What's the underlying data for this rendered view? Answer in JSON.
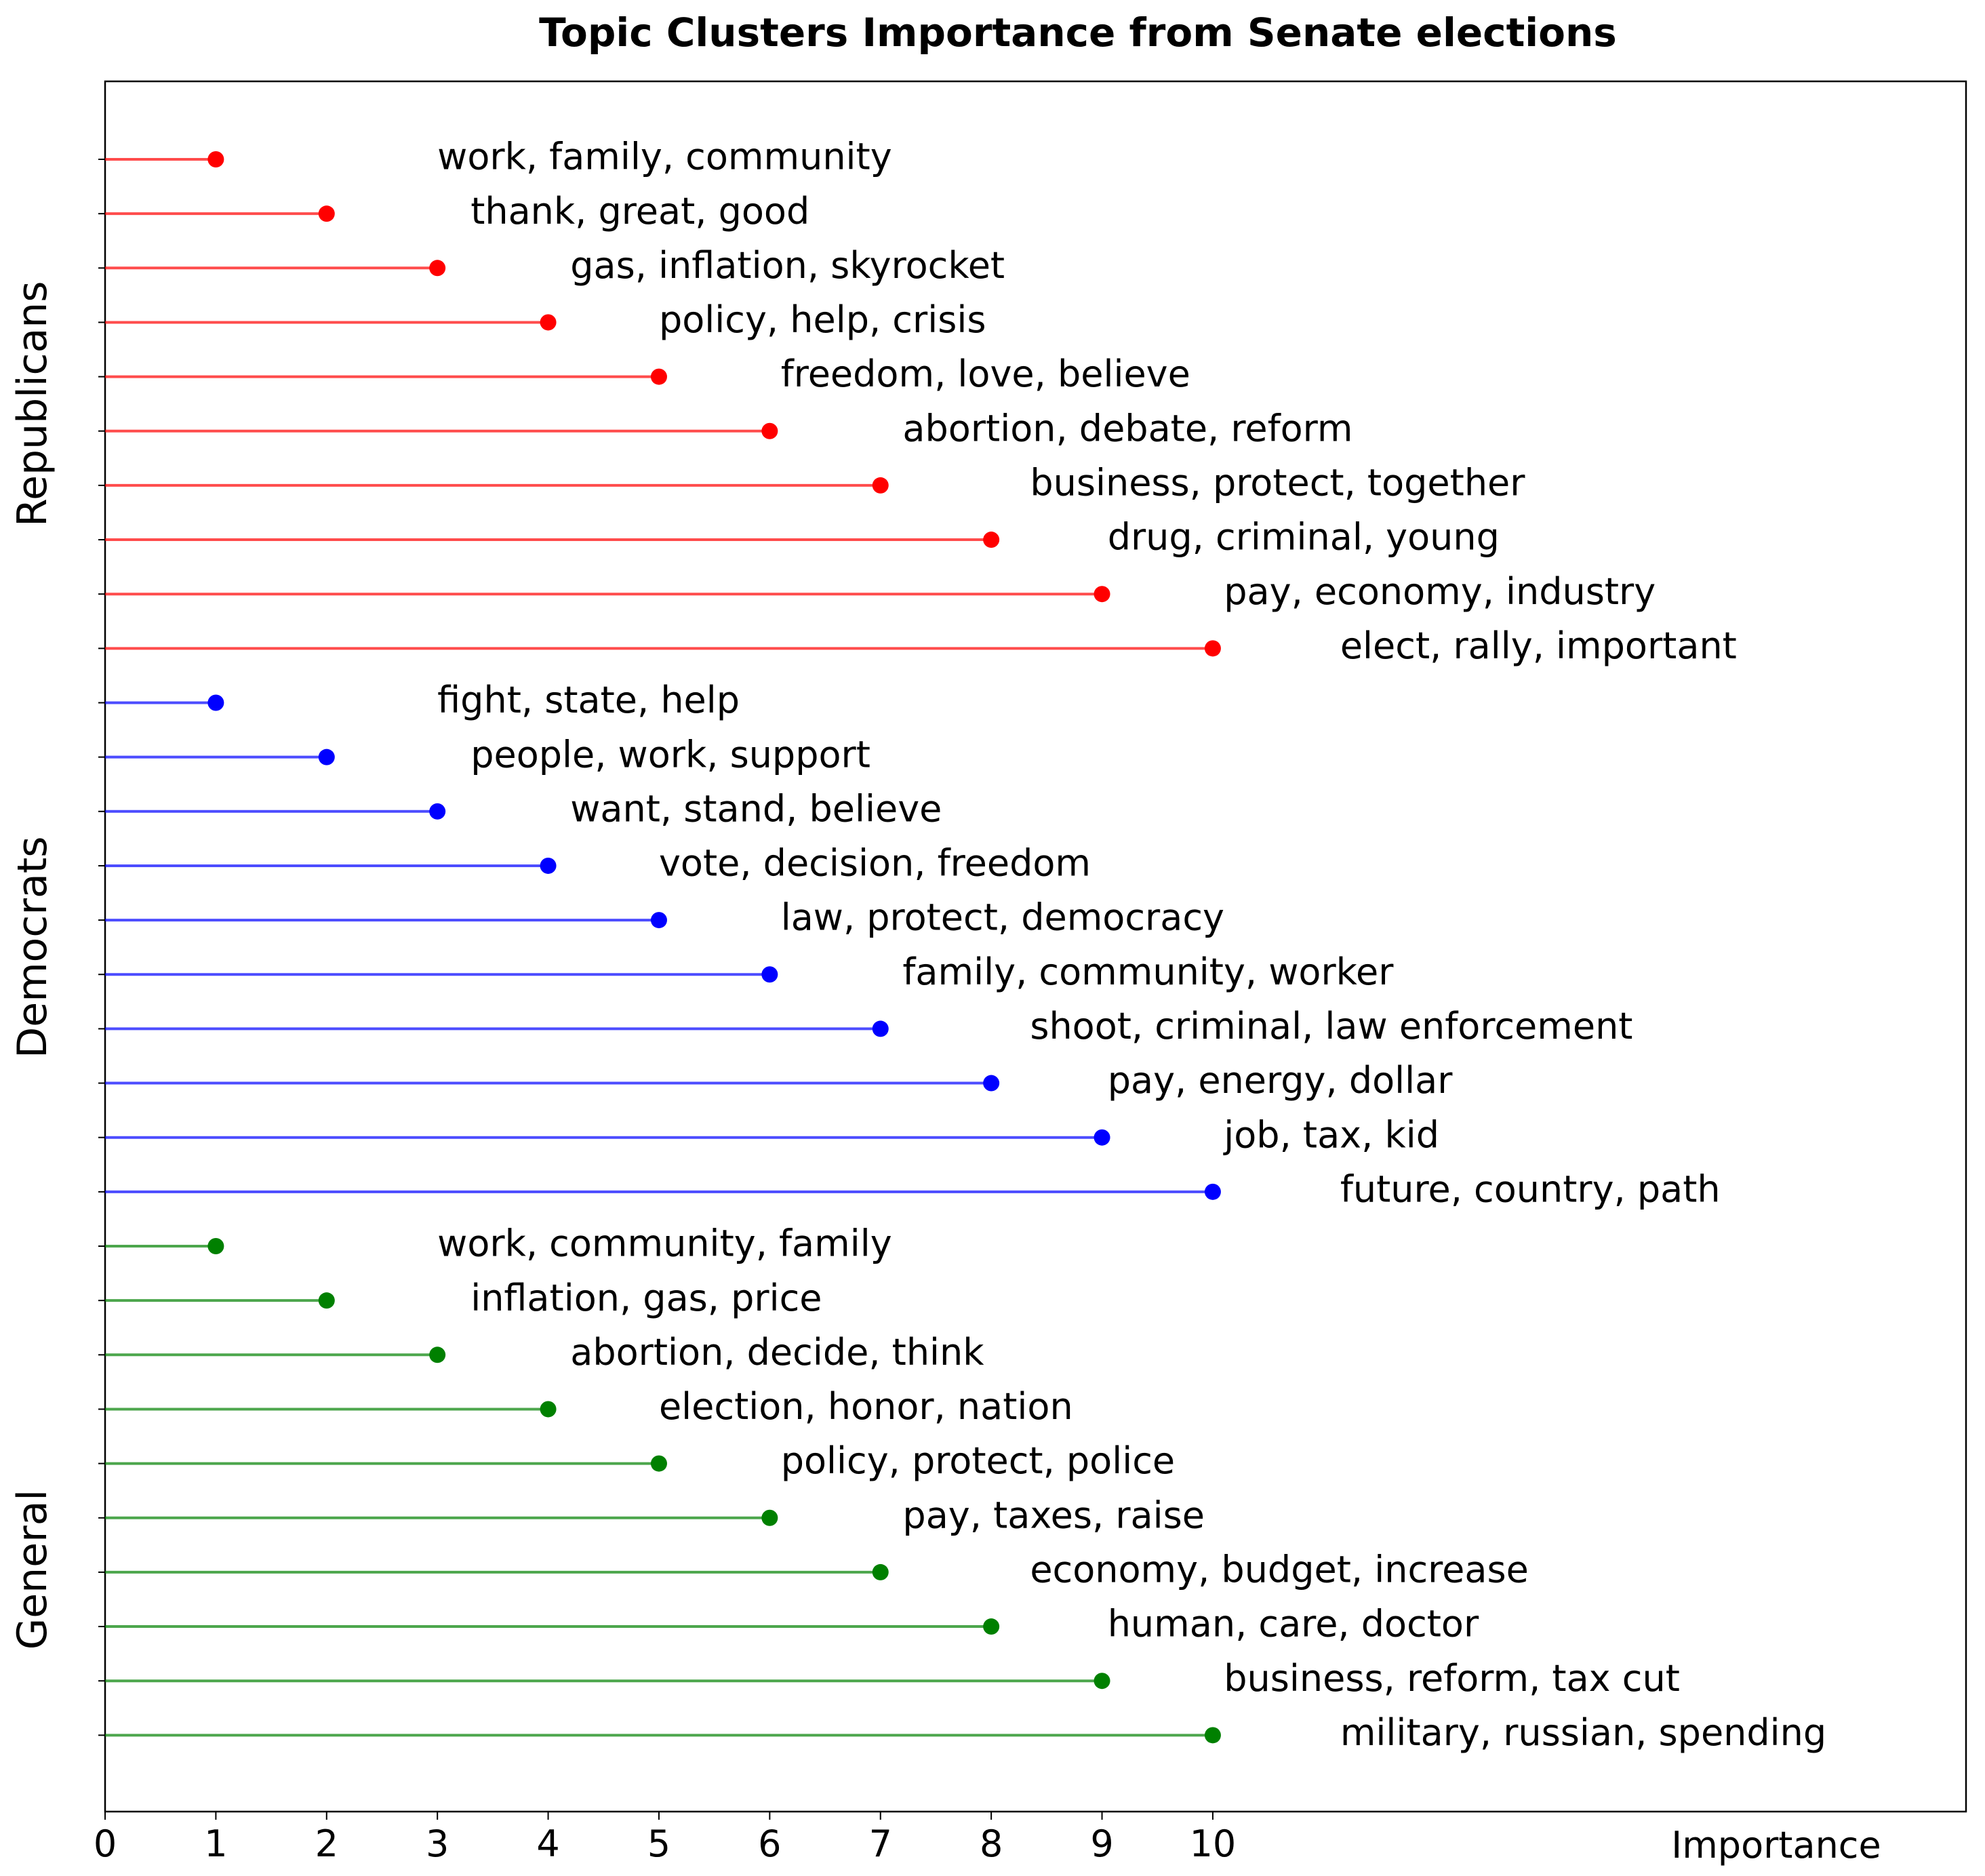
{
  "chart_data": {
    "type": "lollipop",
    "title": "Topic Clusters Importance from Senate elections",
    "xlabel": "Importance",
    "xlim": [
      0,
      16.8
    ],
    "xticks": [
      0,
      1,
      2,
      3,
      4,
      5,
      6,
      7,
      8,
      9,
      10
    ],
    "groups": [
      {
        "name": "Republicans",
        "color": "#ff0000",
        "items": [
          {
            "label": "work, family, community",
            "value": 1
          },
          {
            "label": "thank, great, good",
            "value": 2
          },
          {
            "label": "gas, inflation, skyrocket",
            "value": 3
          },
          {
            "label": "policy, help, crisis",
            "value": 4
          },
          {
            "label": "freedom, love, believe",
            "value": 5
          },
          {
            "label": "abortion, debate, reform",
            "value": 6
          },
          {
            "label": "business, protect, together",
            "value": 7
          },
          {
            "label": "drug, criminal, young",
            "value": 8
          },
          {
            "label": "pay, economy, industry",
            "value": 9
          },
          {
            "label": "elect, rally, important",
            "value": 10
          }
        ]
      },
      {
        "name": "Democrats",
        "color": "#0000ff",
        "items": [
          {
            "label": "fight, state, help",
            "value": 1
          },
          {
            "label": "people, work, support",
            "value": 2
          },
          {
            "label": "want, stand, believe",
            "value": 3
          },
          {
            "label": "vote, decision, freedom",
            "value": 4
          },
          {
            "label": "law, protect, democracy",
            "value": 5
          },
          {
            "label": "family, community, worker",
            "value": 6
          },
          {
            "label": "shoot, criminal, law enforcement",
            "value": 7
          },
          {
            "label": "pay, energy, dollar",
            "value": 8
          },
          {
            "label": "job, tax, kid",
            "value": 9
          },
          {
            "label": "future, country, path",
            "value": 10
          }
        ]
      },
      {
        "name": "General",
        "color": "#008000",
        "items": [
          {
            "label": "work, community, family",
            "value": 1
          },
          {
            "label": "inflation, gas, price",
            "value": 2
          },
          {
            "label": "abortion, decide, think",
            "value": 3
          },
          {
            "label": "election, honor, nation",
            "value": 4
          },
          {
            "label": "policy, protect, police",
            "value": 5
          },
          {
            "label": "pay, taxes, raise",
            "value": 6
          },
          {
            "label": "economy, budget, increase",
            "value": 7
          },
          {
            "label": "human, care, doctor",
            "value": 8
          },
          {
            "label": "business, reform, tax cut",
            "value": 9
          },
          {
            "label": "military, russian, spending",
            "value": 10
          }
        ]
      }
    ]
  }
}
